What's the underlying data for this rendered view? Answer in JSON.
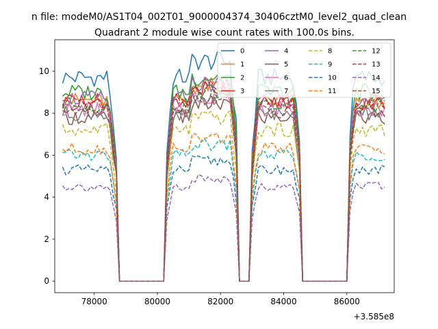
{
  "figure": {
    "suptitle": "n file: modeM0/AS1T04_002T01_9000004374_30406cztM0_level2_quad_clean",
    "title": "Quadrant 2 module wise count rates with 100.0s bins.",
    "offset_label": "+3.585e8"
  },
  "chart_data": {
    "type": "line",
    "title": "Quadrant 2 module wise count rates with 100.0s bins.",
    "xlabel": "",
    "ylabel": "",
    "x_offset": 358500000,
    "xlim": [
      76750,
      87500
    ],
    "ylim": [
      -0.55,
      11.5
    ],
    "xticks": [
      78000,
      80000,
      82000,
      84000,
      86000
    ],
    "xtick_labels": [
      "78000",
      "80000",
      "82000",
      "84000",
      "86000"
    ],
    "yticks": [
      0,
      2,
      4,
      6,
      8,
      10
    ],
    "ytick_labels": [
      "0",
      "2",
      "4",
      "6",
      "8",
      "10"
    ],
    "grid": false,
    "legend": {
      "placement": "top-right",
      "columns": 4
    },
    "gaps": [
      [
        78750,
        80250
      ],
      [
        82600,
        82950
      ],
      [
        84600,
        86000
      ]
    ],
    "series": [
      {
        "name": "0",
        "color": "#1f77b4",
        "dashed": false,
        "level": 9.7
      },
      {
        "name": "1",
        "color": "#ff7f0e",
        "dashed": false,
        "level": 8.6
      },
      {
        "name": "2",
        "color": "#2ca02c",
        "dashed": false,
        "level": 9.0
      },
      {
        "name": "3",
        "color": "#d62728",
        "dashed": false,
        "level": 8.5
      },
      {
        "name": "4",
        "color": "#9467bd",
        "dashed": false,
        "level": 8.7
      },
      {
        "name": "5",
        "color": "#8c564b",
        "dashed": false,
        "level": 7.8
      },
      {
        "name": "6",
        "color": "#e377c2",
        "dashed": false,
        "level": 8.2
      },
      {
        "name": "7",
        "color": "#7f7f7f",
        "dashed": false,
        "level": 8.0
      },
      {
        "name": "8",
        "color": "#bcbd22",
        "dashed": true,
        "level": 7.2
      },
      {
        "name": "9",
        "color": "#17becf",
        "dashed": true,
        "level": 6.0
      },
      {
        "name": "10",
        "color": "#1f77b4",
        "dashed": true,
        "level": 5.3
      },
      {
        "name": "11",
        "color": "#ff7f0e",
        "dashed": true,
        "level": 6.3
      },
      {
        "name": "12",
        "color": "#2ca02c",
        "dashed": true,
        "level": 8.4
      },
      {
        "name": "13",
        "color": "#d62728",
        "dashed": true,
        "level": 8.6
      },
      {
        "name": "14",
        "color": "#9467bd",
        "dashed": true,
        "level": 4.5
      },
      {
        "name": "15",
        "color": "#8c564b",
        "dashed": true,
        "level": 8.1
      }
    ]
  }
}
